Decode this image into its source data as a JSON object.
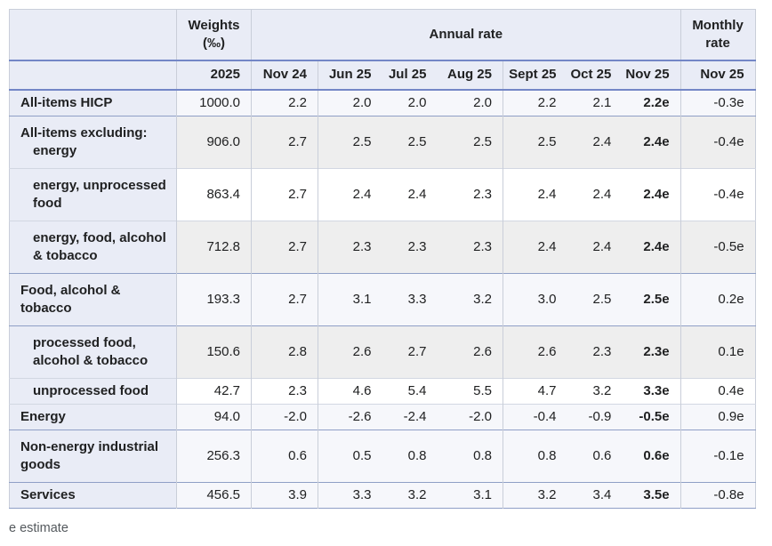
{
  "colors": {
    "header_bg": "#e9ecf6",
    "row_default": "#f6f7fb",
    "row_gray": "#eeeeee",
    "row_white": "#ffffff",
    "rule_blue": "#7386c6",
    "rule_strong": "#8f9fc6",
    "rule_light": "#d2d7e2",
    "rule_vert": "#c9ced9",
    "text": "#202122",
    "footnote": "#54595d"
  },
  "table": {
    "header": {
      "weights_label": "Weights (‰)",
      "annual_rate_label": "Annual rate",
      "monthly_rate_label": "Monthly rate",
      "weights_year": "2025",
      "annual_columns": [
        "Nov 24",
        "Jun 25",
        "Jul 25",
        "Aug 25",
        "Sept 25",
        "Oct 25",
        "Nov 25"
      ],
      "monthly_column": "Nov 25"
    },
    "rows": [
      {
        "label_lines": [
          {
            "text": "All-items HICP",
            "indent": false
          }
        ],
        "weight": "1000.0",
        "annual": [
          "2.2",
          "2.0",
          "2.0",
          "2.0",
          "2.2",
          "2.1",
          "2.2e"
        ],
        "monthly": "-0.3e",
        "bg": "default",
        "border_top": "none",
        "tall": false
      },
      {
        "label_lines": [
          {
            "text": "All-items excluding:",
            "indent": false
          },
          {
            "text": "energy",
            "indent": true
          }
        ],
        "weight": "906.0",
        "annual": [
          "2.7",
          "2.5",
          "2.5",
          "2.5",
          "2.5",
          "2.4",
          "2.4e"
        ],
        "monthly": "-0.4e",
        "bg": "gray",
        "border_top": "strong",
        "tall": true
      },
      {
        "label_lines": [
          {
            "text": "energy, unprocessed",
            "indent": true
          },
          {
            "text": "food",
            "indent": true
          }
        ],
        "weight": "863.4",
        "annual": [
          "2.7",
          "2.4",
          "2.4",
          "2.3",
          "2.4",
          "2.4",
          "2.4e"
        ],
        "monthly": "-0.4e",
        "bg": "white",
        "border_top": "light",
        "tall": true
      },
      {
        "label_lines": [
          {
            "text": "energy, food, alcohol",
            "indent": true
          },
          {
            "text": "& tobacco",
            "indent": true
          }
        ],
        "weight": "712.8",
        "annual": [
          "2.7",
          "2.3",
          "2.3",
          "2.3",
          "2.4",
          "2.4",
          "2.4e"
        ],
        "monthly": "-0.5e",
        "bg": "gray",
        "border_top": "light",
        "tall": true
      },
      {
        "label_lines": [
          {
            "text": "Food, alcohol &",
            "indent": false
          },
          {
            "text": "tobacco",
            "indent": false
          }
        ],
        "weight": "193.3",
        "annual": [
          "2.7",
          "3.1",
          "3.3",
          "3.2",
          "3.0",
          "2.5",
          "2.5e"
        ],
        "monthly": "0.2e",
        "bg": "default",
        "border_top": "strong",
        "tall": true
      },
      {
        "label_lines": [
          {
            "text": "processed food,",
            "indent": true
          },
          {
            "text": "alcohol & tobacco",
            "indent": true
          }
        ],
        "weight": "150.6",
        "annual": [
          "2.8",
          "2.6",
          "2.7",
          "2.6",
          "2.6",
          "2.3",
          "2.3e"
        ],
        "monthly": "0.1e",
        "bg": "gray",
        "border_top": "strong",
        "tall": true
      },
      {
        "label_lines": [
          {
            "text": "unprocessed food",
            "indent": true
          }
        ],
        "weight": "42.7",
        "annual": [
          "2.3",
          "4.6",
          "5.4",
          "5.5",
          "4.7",
          "3.2",
          "3.3e"
        ],
        "monthly": "0.4e",
        "bg": "white",
        "border_top": "light",
        "tall": false
      },
      {
        "label_lines": [
          {
            "text": "Energy",
            "indent": false
          }
        ],
        "weight": "94.0",
        "annual": [
          "-2.0",
          "-2.6",
          "-2.4",
          "-2.0",
          "-0.4",
          "-0.9",
          "-0.5e"
        ],
        "monthly": "0.9e",
        "bg": "default",
        "border_top": "light",
        "tall": false
      },
      {
        "label_lines": [
          {
            "text": "Non-energy industrial",
            "indent": false
          },
          {
            "text": "goods",
            "indent": false
          }
        ],
        "weight": "256.3",
        "annual": [
          "0.6",
          "0.5",
          "0.8",
          "0.8",
          "0.8",
          "0.6",
          "0.6e"
        ],
        "monthly": "-0.1e",
        "bg": "default",
        "border_top": "strong",
        "tall": true
      },
      {
        "label_lines": [
          {
            "text": "Services",
            "indent": false
          }
        ],
        "weight": "456.5",
        "annual": [
          "3.9",
          "3.3",
          "3.2",
          "3.1",
          "3.2",
          "3.4",
          "3.5e"
        ],
        "monthly": "-0.8e",
        "bg": "default",
        "border_top": "strong",
        "tall": false
      }
    ],
    "footnote": "e estimate"
  }
}
